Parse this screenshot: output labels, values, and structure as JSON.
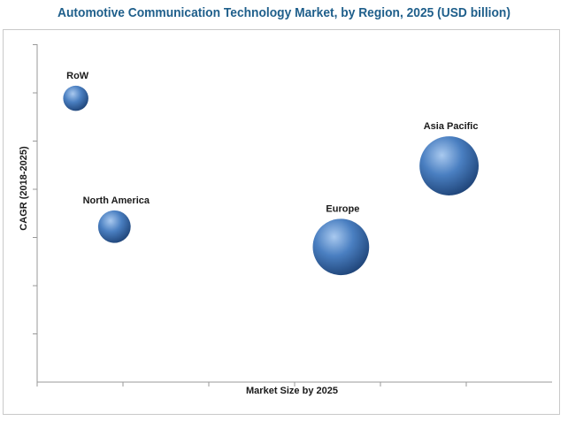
{
  "chart_data": {
    "type": "bubble",
    "title": "Automotive Communication Technology Market, by Region, 2025 (USD billion)",
    "xlabel": "Market Size by 2025",
    "ylabel": "CAGR (2018-2025)",
    "xlim": [
      0,
      10
    ],
    "ylim": [
      0,
      10
    ],
    "grid": false,
    "x_ticks": 6,
    "y_ticks": 7,
    "points": [
      {
        "label": "RoW",
        "x": 0.75,
        "y": 8.4,
        "size": 0.6
      },
      {
        "label": "North America",
        "x": 1.5,
        "y": 4.6,
        "size": 1.0
      },
      {
        "label": "Europe",
        "x": 5.9,
        "y": 4.0,
        "size": 3.0
      },
      {
        "label": "Asia Pacific",
        "x": 8.0,
        "y": 6.4,
        "size": 3.3
      }
    ],
    "colors": {
      "bubble_light": "#a9c9ef",
      "bubble_mid": "#4a7fc1",
      "bubble_dark": "#1b3f72"
    }
  }
}
